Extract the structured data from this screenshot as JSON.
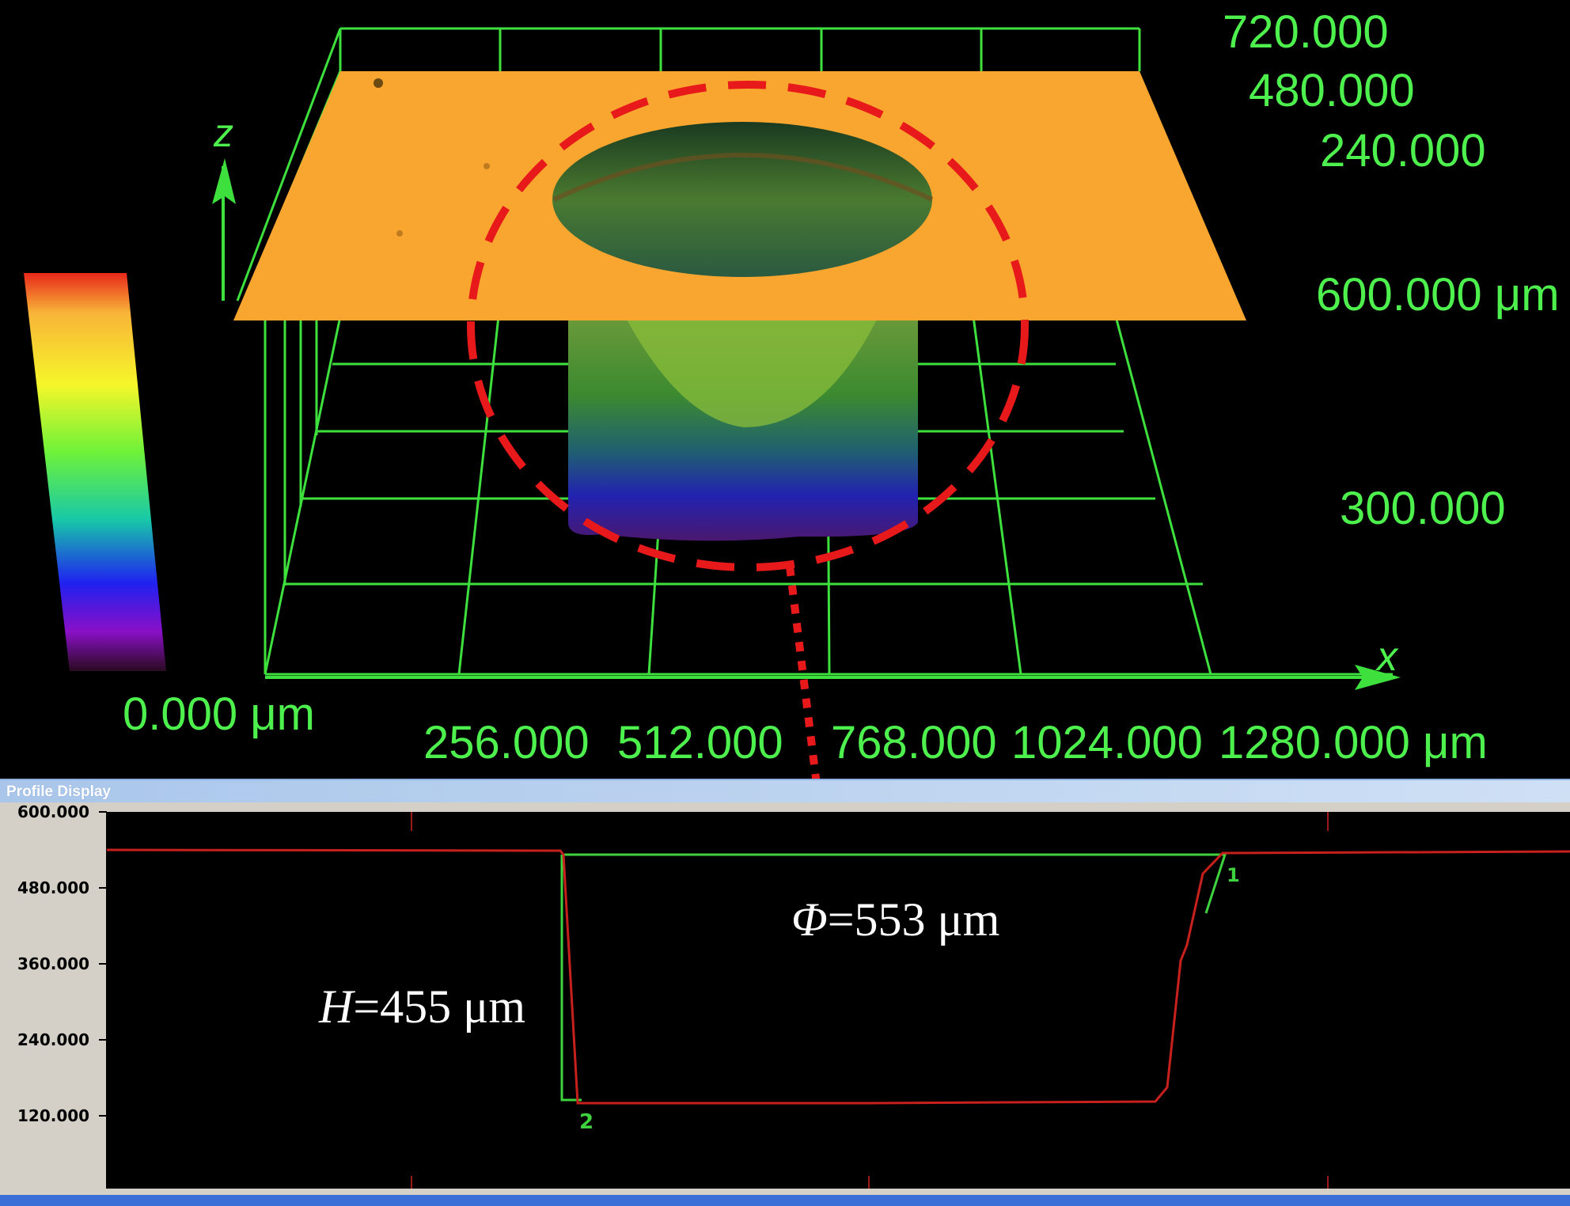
{
  "surface_view": {
    "axis_z": "z",
    "axis_x": "x",
    "y_axis_labels": [
      "720.000",
      "480.000",
      "240.000"
    ],
    "z_axis_labels": [
      "600.000 μm",
      "300.000"
    ],
    "colorbar_min_label": "0.000 μm",
    "x_axis_labels": [
      "256.000",
      "512.000",
      "768.000",
      "1024.000",
      "1280.000 μm"
    ],
    "colors": {
      "grid": "#3ee03e",
      "surface": "#f9a630",
      "highlight": "#e8191a"
    }
  },
  "profile_window": {
    "title": "Profile Display",
    "y_ticks": [
      "600.000",
      "480.000",
      "360.000",
      "240.000",
      "120.000"
    ],
    "markers": [
      "1",
      "2"
    ],
    "colors": {
      "profile": "#c8201c",
      "measure": "#3fd23f"
    }
  },
  "annotations": {
    "diameter_symbol": "Φ",
    "diameter_value": "=553 μm",
    "height_symbol": "H",
    "height_value": "=455 μm"
  }
}
